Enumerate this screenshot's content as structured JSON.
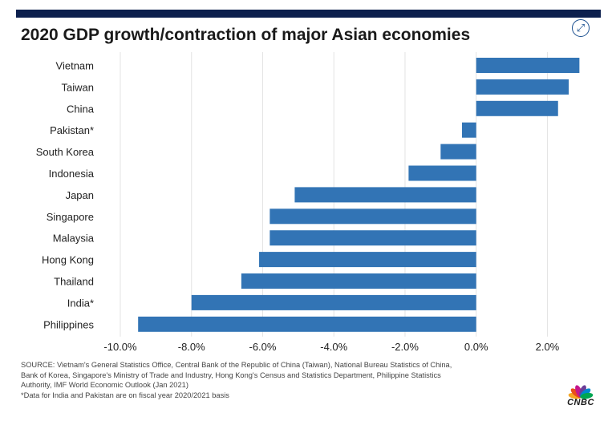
{
  "title": "2020 GDP growth/contraction of major Asian economies",
  "expand_icon": "expand-arrows-icon",
  "chart_data": {
    "type": "bar",
    "orientation": "horizontal",
    "categories": [
      "Vietnam",
      "Taiwan",
      "China",
      "Pakistan*",
      "South Korea",
      "Indonesia",
      "Japan",
      "Singapore",
      "Malaysia",
      "Hong Kong",
      "Thailand",
      "India*",
      "Philippines"
    ],
    "values": [
      2.9,
      2.6,
      2.3,
      -0.4,
      -1.0,
      -1.9,
      -5.1,
      -5.8,
      -5.8,
      -6.1,
      -6.6,
      -8.0,
      -9.5
    ],
    "xlim": [
      -10.0,
      3.5
    ],
    "xticks": [
      -10.0,
      -8.0,
      -6.0,
      -4.0,
      -2.0,
      0.0,
      2.0
    ],
    "xtick_labels": [
      "-10.0%",
      "-8.0%",
      "-6.0%",
      "-4.0%",
      "-2.0%",
      "0.0%",
      "2.0%"
    ],
    "bar_color": "#3274b5",
    "grid": "vertical gridlines"
  },
  "source": {
    "lines": [
      "SOURCE: Vietnam's General Statistics Office, Central Bank of the Republic of China (Taiwan), National Bureau Statistics of China,",
      "Bank of Korea, Singapore's Ministry of Trade and Industry, Hong Kong's Census and Statistics Department, Philippine Statistics",
      "Authority, IMF World Economic Outlook (Jan 2021)"
    ],
    "footnote": "*Data for India and Pakistan are on fiscal year 2020/2021 basis"
  },
  "logo": {
    "text": "CNBC",
    "icon": "peacock-logo-icon",
    "colors": [
      "#f5a623",
      "#e94e1b",
      "#c5168c",
      "#6a3e98",
      "#0089cf",
      "#00a651"
    ]
  }
}
